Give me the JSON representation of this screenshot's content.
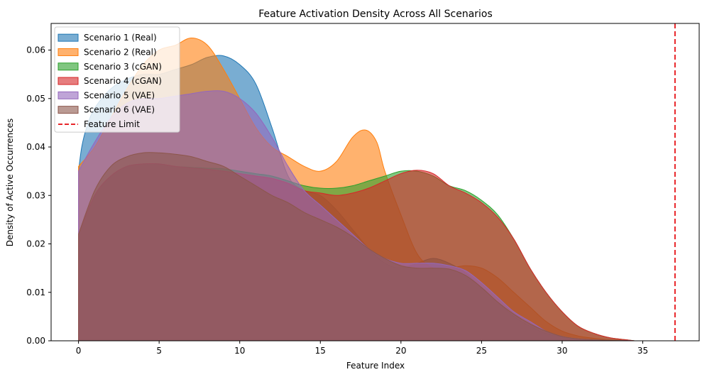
{
  "chart_data": {
    "type": "area",
    "title": "Feature Activation Density Across All Scenarios",
    "xlabel": "Feature Index",
    "ylabel": "Density of Active Occurrences",
    "xlim": [
      -1.7,
      38.5
    ],
    "ylim": [
      0,
      0.0655
    ],
    "grid": false,
    "legend_position": "top-left",
    "x_ticks": [
      0,
      5,
      10,
      15,
      20,
      25,
      30,
      35
    ],
    "y_ticks": [
      0.0,
      0.01,
      0.02,
      0.03,
      0.04,
      0.05,
      0.06
    ],
    "y_tick_labels": [
      "0.00",
      "0.01",
      "0.02",
      "0.03",
      "0.04",
      "0.05",
      "0.06"
    ],
    "fill_opacity": 0.6,
    "series": [
      {
        "name": "Scenario 1 (Real)",
        "color": "#1f77b4",
        "x": [
          0,
          0.2,
          0.5,
          1,
          2,
          3,
          4,
          5,
          6,
          7,
          8,
          9,
          10,
          11,
          12,
          13,
          14,
          15,
          16,
          17,
          18,
          19,
          20,
          21,
          22,
          23,
          24,
          25,
          26,
          27,
          28,
          29,
          30,
          31,
          32,
          33,
          34,
          34.5
        ],
        "y": [
          0.035,
          0.04,
          0.044,
          0.048,
          0.052,
          0.054,
          0.055,
          0.055,
          0.056,
          0.057,
          0.0585,
          0.0588,
          0.057,
          0.053,
          0.044,
          0.034,
          0.031,
          0.03,
          0.027,
          0.023,
          0.019,
          0.016,
          0.015,
          0.016,
          0.017,
          0.016,
          0.014,
          0.011,
          0.008,
          0.005,
          0.003,
          0.0015,
          0.0008,
          0.0004,
          0.0002,
          0.0001,
          3e-05,
          0
        ]
      },
      {
        "name": "Scenario 2 (Real)",
        "color": "#ff7f0e",
        "x": [
          0,
          1,
          2,
          3,
          4,
          5,
          6,
          7,
          8,
          9,
          10,
          11,
          12,
          13,
          14,
          15,
          16,
          17,
          17.8,
          18.5,
          19,
          20,
          21,
          22,
          23,
          24,
          25,
          26,
          27,
          28,
          29,
          30,
          31,
          32,
          33,
          34,
          34.5
        ],
        "y": [
          0.036,
          0.04,
          0.046,
          0.052,
          0.057,
          0.06,
          0.061,
          0.0625,
          0.061,
          0.056,
          0.05,
          0.044,
          0.04,
          0.038,
          0.036,
          0.035,
          0.037,
          0.042,
          0.0435,
          0.041,
          0.035,
          0.026,
          0.018,
          0.015,
          0.015,
          0.0155,
          0.015,
          0.013,
          0.01,
          0.007,
          0.004,
          0.002,
          0.001,
          0.0005,
          0.0002,
          5e-05,
          0
        ]
      },
      {
        "name": "Scenario 3 (cGAN)",
        "color": "#2ca02c",
        "x": [
          0,
          1,
          2,
          3,
          4,
          5,
          6,
          7,
          8,
          9,
          10,
          11,
          12,
          13,
          14,
          15,
          16,
          17,
          18,
          19,
          20,
          21,
          22,
          23,
          24,
          25,
          26,
          27,
          28,
          29,
          30,
          31,
          32,
          33,
          34,
          34.5
        ],
        "y": [
          0.022,
          0.03,
          0.034,
          0.036,
          0.0365,
          0.0365,
          0.036,
          0.0358,
          0.0356,
          0.0355,
          0.035,
          0.0345,
          0.034,
          0.033,
          0.032,
          0.0315,
          0.0315,
          0.032,
          0.033,
          0.034,
          0.035,
          0.035,
          0.034,
          0.032,
          0.031,
          0.029,
          0.026,
          0.021,
          0.015,
          0.01,
          0.006,
          0.003,
          0.0015,
          0.0006,
          0.0002,
          0
        ]
      },
      {
        "name": "Scenario 4 (cGAN)",
        "color": "#d62728",
        "x": [
          0,
          1,
          2,
          3,
          4,
          5,
          6,
          7,
          8,
          9,
          10,
          11,
          12,
          13,
          14,
          15,
          16,
          17,
          18,
          19,
          20,
          21,
          22,
          23,
          24,
          25,
          26,
          27,
          28,
          29,
          30,
          31,
          32,
          33,
          34,
          34.5
        ],
        "y": [
          0.022,
          0.03,
          0.034,
          0.036,
          0.0365,
          0.0365,
          0.036,
          0.0357,
          0.0354,
          0.035,
          0.0345,
          0.034,
          0.0335,
          0.0325,
          0.031,
          0.0305,
          0.03,
          0.0305,
          0.0315,
          0.033,
          0.0345,
          0.0352,
          0.0345,
          0.032,
          0.0305,
          0.0285,
          0.0255,
          0.021,
          0.015,
          0.01,
          0.006,
          0.003,
          0.0015,
          0.0006,
          0.0002,
          0
        ]
      },
      {
        "name": "Scenario 5 (VAE)",
        "color": "#9467bd",
        "x": [
          0,
          1,
          2,
          3,
          4,
          5,
          6,
          7,
          8,
          9,
          10,
          11,
          12,
          13,
          14,
          15,
          16,
          17,
          18,
          19,
          20,
          21,
          22,
          23,
          24,
          25,
          26,
          27,
          28,
          29,
          30,
          31,
          32,
          33,
          34,
          34.5
        ],
        "y": [
          0.035,
          0.041,
          0.046,
          0.049,
          0.05,
          0.05,
          0.0505,
          0.051,
          0.0515,
          0.0515,
          0.05,
          0.047,
          0.042,
          0.036,
          0.031,
          0.028,
          0.025,
          0.022,
          0.019,
          0.017,
          0.016,
          0.016,
          0.016,
          0.0155,
          0.0145,
          0.012,
          0.009,
          0.006,
          0.004,
          0.002,
          0.0009,
          0.0004,
          0.0002,
          0.0001,
          3e-05,
          0
        ]
      },
      {
        "name": "Scenario 6 (VAE)",
        "color": "#8c564b",
        "x": [
          0,
          1,
          2,
          3,
          4,
          5,
          6,
          7,
          8,
          9,
          10,
          11,
          12,
          13,
          14,
          15,
          16,
          17,
          18,
          19,
          20,
          21,
          22,
          23,
          24,
          25,
          26,
          27,
          28,
          29,
          30,
          31,
          32,
          33,
          34,
          34.5
        ],
        "y": [
          0.022,
          0.031,
          0.036,
          0.038,
          0.0388,
          0.0388,
          0.0385,
          0.038,
          0.037,
          0.036,
          0.034,
          0.032,
          0.03,
          0.0285,
          0.0265,
          0.025,
          0.0235,
          0.0215,
          0.019,
          0.017,
          0.0155,
          0.015,
          0.015,
          0.0148,
          0.0135,
          0.011,
          0.008,
          0.0055,
          0.0035,
          0.002,
          0.0009,
          0.0004,
          0.0002,
          0.0001,
          3e-05,
          0
        ]
      }
    ],
    "vline": {
      "name": "Feature Limit",
      "x": 37,
      "color": "#e8262a",
      "style": "dashed"
    }
  }
}
